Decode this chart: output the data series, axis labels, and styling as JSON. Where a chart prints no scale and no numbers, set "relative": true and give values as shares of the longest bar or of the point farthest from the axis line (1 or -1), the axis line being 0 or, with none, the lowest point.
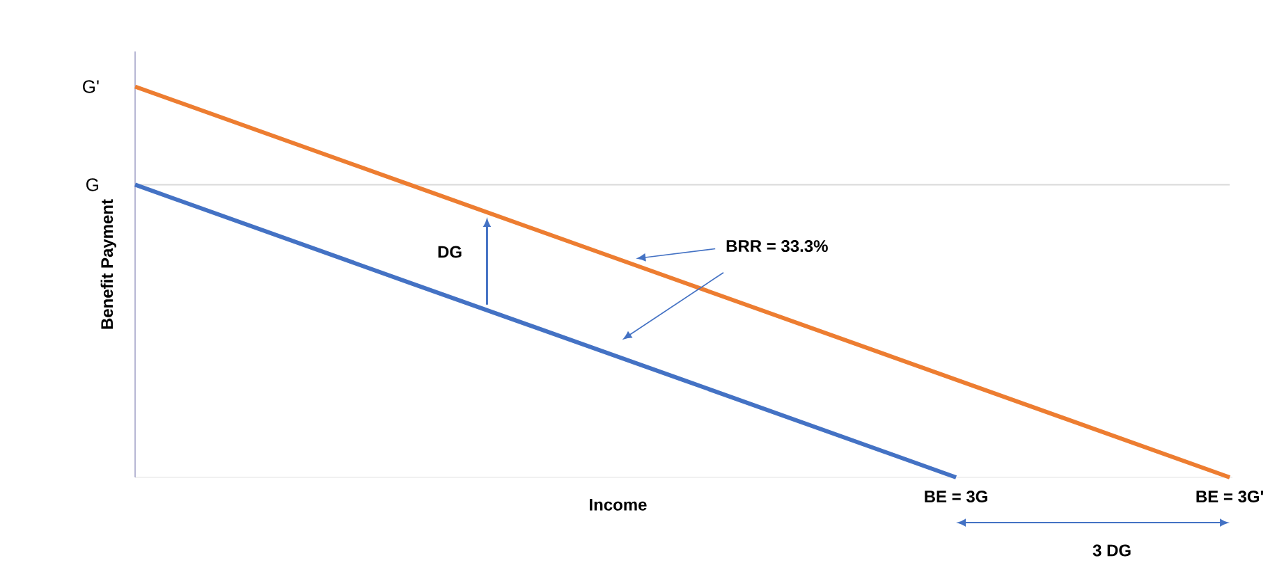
{
  "chart_data": {
    "type": "line",
    "relative": true,
    "xlabel": "Income",
    "ylabel": "Benefit Payment",
    "categories": [
      null,
      null,
      null,
      "BE = 3G",
      "BE = 3G'"
    ],
    "series": [
      {
        "color": "#4472c4",
        "values": [
          0.749,
          0.499,
          0.25,
          0,
          null
        ]
      },
      {
        "color": "#ed7d31",
        "values": [
          1,
          0.75,
          0.5,
          0.25,
          0
        ]
      }
    ],
    "ref_lines": [
      {
        "axis": "y",
        "value": 0.749,
        "color": "#d9d9d9"
      }
    ],
    "annotations": [
      "G",
      "G'",
      "DG",
      "BRR = 33.3%",
      "3 DG"
    ]
  }
}
